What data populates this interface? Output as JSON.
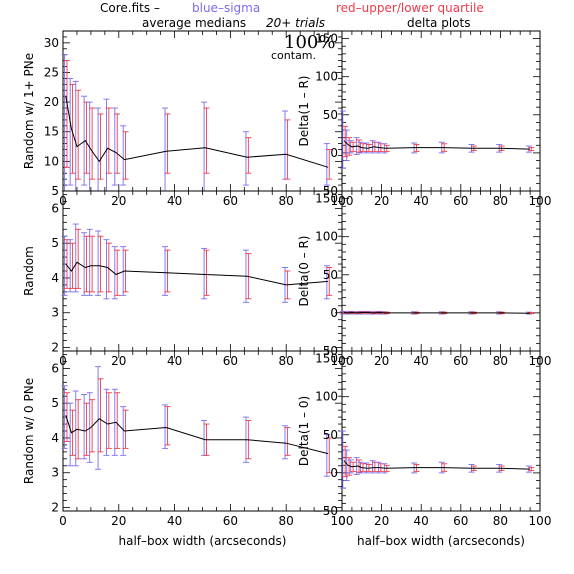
{
  "header": {
    "file_label": "Core.fits  –",
    "blue_label": "blue–sigma",
    "red_label": "red–upper/lower quartile",
    "left_title": "average medians",
    "trials": "20+ trials",
    "contam_pct": "100%",
    "contam_word": "contam.",
    "right_title": "delta plots",
    "colors": {
      "blue": "#7b6cf0",
      "red": "#f03a4a",
      "line": "#000000"
    }
  },
  "chart_data": [
    {
      "type": "line",
      "id": "left-top",
      "ylabel": "Random w/ 1+ PNe",
      "xlabel": "",
      "xlim": [
        0,
        100
      ],
      "ylim": [
        5,
        32
      ],
      "xticks": [
        0,
        20,
        40,
        60,
        80,
        100
      ],
      "yticks": [
        5,
        10,
        15,
        20,
        25,
        30
      ],
      "x": [
        1,
        3,
        5,
        8,
        10,
        13,
        16,
        19,
        22,
        37,
        51,
        66,
        80,
        95
      ],
      "y": [
        21,
        15.5,
        12.5,
        13.5,
        12,
        10,
        12.2,
        11.5,
        10.3,
        11.7,
        12.3,
        10.7,
        11.2,
        9
      ],
      "sigma_lo": [
        5,
        6,
        5,
        6,
        5,
        5,
        5,
        6,
        6,
        5,
        5,
        6,
        7,
        6
      ],
      "sigma_hi": [
        28,
        24,
        23.5,
        21,
        20,
        19,
        20.5,
        19,
        16,
        19,
        20,
        15,
        18.5,
        13
      ],
      "quart_lo": [
        9,
        8,
        7,
        8,
        7,
        7,
        8,
        8,
        7,
        8,
        8,
        8,
        7,
        7
      ],
      "quart_hi": [
        27,
        23,
        22,
        20,
        19,
        18,
        19,
        18,
        15,
        18,
        19,
        14,
        17,
        12
      ]
    },
    {
      "type": "line",
      "id": "left-mid",
      "ylabel": "Random",
      "xlabel": "",
      "xlim": [
        0,
        100
      ],
      "ylim": [
        1.9,
        6.5
      ],
      "xticks": [
        0,
        20,
        40,
        60,
        80,
        100
      ],
      "yticks": [
        2,
        3,
        4,
        5,
        6
      ],
      "x": [
        1,
        3,
        5,
        8,
        10,
        13,
        16,
        19,
        22,
        37,
        51,
        66,
        80,
        95
      ],
      "y": [
        4.4,
        4.2,
        4.45,
        4.3,
        4.35,
        4.35,
        4.3,
        4.1,
        4.2,
        4.15,
        4.1,
        4.05,
        3.8,
        3.9
      ],
      "sigma_lo": [
        3.5,
        3.6,
        3.6,
        3.5,
        3.5,
        3.5,
        3.4,
        3.4,
        3.5,
        3.5,
        3.4,
        3.3,
        3.3,
        3.4
      ],
      "sigma_hi": [
        5.2,
        5.1,
        5.55,
        5.3,
        5.4,
        5.35,
        5.1,
        4.9,
        4.9,
        4.9,
        4.85,
        4.8,
        4.3,
        4.35
      ],
      "quart_lo": [
        3.7,
        3.7,
        3.7,
        3.6,
        3.6,
        3.6,
        3.6,
        3.5,
        3.6,
        3.6,
        3.5,
        3.4,
        3.4,
        3.5
      ],
      "quart_hi": [
        5.1,
        5.0,
        5.4,
        5.2,
        5.2,
        5.2,
        5.0,
        4.8,
        4.8,
        4.8,
        4.8,
        4.7,
        4.2,
        4.3
      ]
    },
    {
      "type": "line",
      "id": "left-bot",
      "ylabel": "Random w/ 0 PNe",
      "xlabel": "half–box width (arcseconds)",
      "xlim": [
        0,
        100
      ],
      "ylim": [
        1.9,
        6.5
      ],
      "xticks": [
        0,
        20,
        40,
        60,
        80,
        100
      ],
      "yticks": [
        2,
        3,
        4,
        5,
        6
      ],
      "x": [
        1,
        3,
        5,
        8,
        10,
        13,
        16,
        19,
        22,
        37,
        51,
        66,
        80,
        95
      ],
      "y": [
        4.65,
        4.15,
        4.25,
        4.2,
        4.3,
        4.55,
        4.4,
        4.45,
        4.2,
        4.3,
        3.95,
        3.95,
        3.85,
        3.55
      ],
      "sigma_lo": [
        3.7,
        3.2,
        3.2,
        3.4,
        3.3,
        3.1,
        3.5,
        3.5,
        3.5,
        3.7,
        3.5,
        3.3,
        3.4,
        2.9
      ],
      "sigma_hi": [
        5.5,
        5.0,
        5.35,
        5.25,
        5.3,
        6.05,
        5.4,
        5.4,
        4.9,
        4.95,
        4.5,
        4.6,
        4.35,
        4.1
      ],
      "quart_lo": [
        3.9,
        3.5,
        3.4,
        3.5,
        3.6,
        3.6,
        3.7,
        3.7,
        3.7,
        3.8,
        3.5,
        3.4,
        3.5,
        3.0
      ],
      "quart_hi": [
        5.3,
        4.8,
        5.1,
        5.0,
        5.1,
        5.7,
        5.3,
        5.3,
        4.8,
        4.9,
        4.4,
        4.5,
        4.3,
        4.0
      ]
    },
    {
      "type": "line",
      "id": "right-top",
      "ylabel": "Delta(1 – R)",
      "xlabel": "",
      "xlim": [
        0,
        100
      ],
      "ylim": [
        -50,
        160
      ],
      "xticks": [
        0,
        20,
        40,
        60,
        80,
        100
      ],
      "yticks": [
        -50,
        0,
        50,
        100,
        150
      ],
      "x": [
        1,
        3,
        5,
        8,
        10,
        13,
        16,
        19,
        22,
        37,
        51,
        66,
        80,
        95
      ],
      "y": [
        16,
        11,
        8,
        9,
        7,
        6,
        8,
        7,
        6,
        7,
        7,
        6,
        6,
        5
      ],
      "sigma_lo": [
        -20,
        -10,
        0,
        -2,
        0,
        0,
        0,
        0,
        0,
        0,
        0,
        1,
        1,
        1
      ],
      "sigma_hi": [
        55,
        30,
        16,
        20,
        14,
        13,
        16,
        14,
        12,
        13,
        14,
        11,
        11,
        9
      ],
      "quart_lo": [
        -5,
        -3,
        2,
        1,
        2,
        2,
        2,
        2,
        2,
        2,
        2,
        3,
        3,
        3
      ],
      "quart_hi": [
        35,
        20,
        14,
        17,
        12,
        11,
        14,
        12,
        10,
        11,
        12,
        9,
        9,
        7
      ]
    },
    {
      "type": "line",
      "id": "right-mid",
      "ylabel": "Delta(0 – R)",
      "xlabel": "",
      "xlim": [
        0,
        100
      ],
      "ylim": [
        -50,
        160
      ],
      "xticks": [
        0,
        20,
        40,
        60,
        80,
        100
      ],
      "yticks": [
        -50,
        0,
        50,
        100,
        150
      ],
      "x": [
        1,
        3,
        5,
        8,
        10,
        13,
        16,
        19,
        22,
        37,
        51,
        66,
        80,
        95
      ],
      "y": [
        0.5,
        0,
        0.5,
        0,
        0.5,
        0.5,
        0,
        0.5,
        0,
        0,
        0,
        0,
        0,
        -0.5
      ],
      "sigma_lo": [
        -1.5,
        -1.5,
        -1.5,
        -1.5,
        -1.5,
        -1.5,
        -1.5,
        -1.5,
        -1.5,
        -1.5,
        -1.5,
        -1.5,
        -1.5,
        -1.5
      ],
      "sigma_hi": [
        2,
        1.5,
        2,
        1.5,
        2,
        2,
        1.5,
        2,
        1.5,
        1.5,
        1.5,
        1.5,
        1.5,
        1
      ],
      "quart_lo": [
        -1,
        -1,
        -1,
        -1,
        -1,
        -1,
        -1,
        -1,
        -1,
        -1,
        -1,
        -1,
        -1,
        -1
      ],
      "quart_hi": [
        1.5,
        1,
        1.5,
        1,
        1.5,
        1.5,
        1,
        1.5,
        1,
        1,
        1,
        1,
        1,
        0.5
      ]
    },
    {
      "type": "line",
      "id": "right-bot",
      "ylabel": "Delta(1 – 0)",
      "xlabel": "half–box width (arcseconds)",
      "xlim": [
        0,
        100
      ],
      "ylim": [
        -50,
        160
      ],
      "xticks": [
        0,
        20,
        40,
        60,
        80,
        100
      ],
      "yticks": [
        -50,
        0,
        50,
        100,
        150
      ],
      "x": [
        1,
        3,
        5,
        8,
        10,
        13,
        16,
        19,
        22,
        37,
        51,
        66,
        80,
        95
      ],
      "y": [
        16,
        10,
        8,
        9,
        7,
        6,
        7,
        7,
        6,
        7,
        7,
        6,
        6,
        5
      ],
      "sigma_lo": [
        -20,
        -10,
        0,
        -2,
        0,
        0,
        0,
        0,
        0,
        0,
        0,
        1,
        1,
        1
      ],
      "sigma_hi": [
        55,
        30,
        17,
        20,
        14,
        13,
        16,
        14,
        12,
        13,
        14,
        11,
        11,
        9
      ],
      "quart_lo": [
        -5,
        -3,
        2,
        1,
        2,
        2,
        2,
        2,
        2,
        2,
        2,
        3,
        3,
        3
      ],
      "quart_hi": [
        35,
        20,
        14,
        17,
        12,
        11,
        14,
        12,
        10,
        11,
        12,
        9,
        9,
        7
      ]
    }
  ]
}
